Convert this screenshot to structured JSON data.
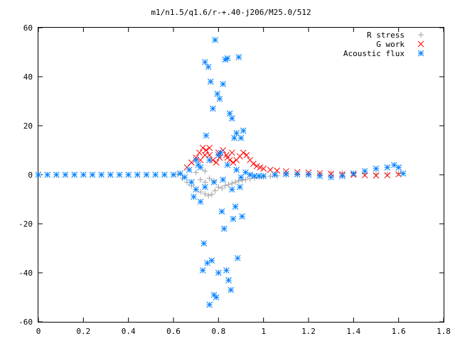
{
  "chart_data": {
    "type": "scatter",
    "title": "m1/n1.5/q1.6/r-+.40-j206/M25.0/512",
    "xlabel": "",
    "ylabel": "",
    "xlim": [
      0,
      1.8
    ],
    "ylim": [
      -60,
      60
    ],
    "x_ticks": [
      0,
      0.2,
      0.4,
      0.6,
      0.8,
      1,
      1.2,
      1.4,
      1.6,
      1.8
    ],
    "x_tick_labels": [
      "0",
      "0.2",
      "0.4",
      "0.6",
      "0.8",
      "1",
      "1.2",
      "1.4",
      "1.6",
      "1.8"
    ],
    "y_ticks": [
      -60,
      -40,
      -20,
      0,
      20,
      40,
      60
    ],
    "y_tick_labels": [
      "-60",
      "-40",
      "-20",
      "0",
      "20",
      "40",
      "60"
    ],
    "grid": false,
    "legend_position": "top-right",
    "series": [
      {
        "name": "R stress",
        "marker": "plus",
        "color": "#a0a0a0",
        "points": [
          [
            0.62,
            0.2
          ],
          [
            0.64,
            -1.5
          ],
          [
            0.66,
            -3.0
          ],
          [
            0.68,
            -4.5
          ],
          [
            0.7,
            -6.0
          ],
          [
            0.72,
            -7.0
          ],
          [
            0.74,
            -7.8
          ],
          [
            0.755,
            -8.5
          ],
          [
            0.77,
            -8.0
          ],
          [
            0.785,
            -6.5
          ],
          [
            0.8,
            -5.0
          ],
          [
            0.815,
            -5.5
          ],
          [
            0.83,
            -4.5
          ],
          [
            0.845,
            -4.0
          ],
          [
            0.86,
            -3.5
          ],
          [
            0.875,
            -3.0
          ],
          [
            0.89,
            -2.5
          ],
          [
            0.905,
            -2.2
          ],
          [
            0.92,
            -2.0
          ],
          [
            0.94,
            -1.6
          ],
          [
            0.96,
            -1.3
          ],
          [
            0.98,
            -1.0
          ],
          [
            1.0,
            -0.8
          ],
          [
            1.03,
            -0.6
          ],
          [
            1.06,
            -0.4
          ],
          [
            1.1,
            -0.2
          ],
          [
            1.15,
            0.0
          ],
          [
            1.2,
            0.2
          ],
          [
            1.25,
            0.5
          ],
          [
            1.3,
            0.8
          ],
          [
            1.35,
            0.8
          ],
          [
            1.4,
            0.6
          ],
          [
            1.45,
            0.4
          ],
          [
            1.5,
            0.3
          ],
          [
            1.55,
            0.3
          ],
          [
            1.6,
            0.5
          ],
          [
            0.72,
            -2.0
          ],
          [
            0.74,
            -3.0
          ],
          [
            0.76,
            -1.5
          ],
          [
            0.78,
            -2.5
          ],
          [
            0.74,
            1.5
          ],
          [
            0.7,
            1.0
          ]
        ]
      },
      {
        "name": "G work",
        "marker": "cross",
        "color": "#ff0000",
        "points": [
          [
            0.66,
            3.0
          ],
          [
            0.68,
            5.0
          ],
          [
            0.7,
            7.0
          ],
          [
            0.715,
            9.0
          ],
          [
            0.73,
            11.0
          ],
          [
            0.745,
            10.0
          ],
          [
            0.76,
            8.0
          ],
          [
            0.775,
            6.0
          ],
          [
            0.79,
            5.0
          ],
          [
            0.805,
            7.0
          ],
          [
            0.82,
            10.0
          ],
          [
            0.835,
            8.0
          ],
          [
            0.85,
            6.0
          ],
          [
            0.865,
            5.0
          ],
          [
            0.88,
            6.0
          ],
          [
            0.895,
            7.5
          ],
          [
            0.91,
            9.0
          ],
          [
            0.925,
            8.0
          ],
          [
            0.94,
            6.0
          ],
          [
            0.955,
            4.5
          ],
          [
            0.97,
            3.5
          ],
          [
            0.985,
            3.0
          ],
          [
            1.0,
            2.5
          ],
          [
            1.03,
            2.0
          ],
          [
            1.06,
            1.7
          ],
          [
            1.1,
            1.4
          ],
          [
            1.15,
            1.1
          ],
          [
            1.2,
            0.9
          ],
          [
            1.25,
            0.6
          ],
          [
            1.3,
            0.4
          ],
          [
            1.35,
            0.2
          ],
          [
            1.4,
            0.0
          ],
          [
            1.45,
            -0.2
          ],
          [
            1.5,
            -0.3
          ],
          [
            1.55,
            -0.2
          ],
          [
            1.6,
            0.2
          ],
          [
            0.72,
            6.0
          ],
          [
            0.74,
            8.0
          ],
          [
            0.76,
            11.0
          ],
          [
            0.8,
            9.0
          ],
          [
            0.84,
            7.0
          ],
          [
            0.86,
            9.0
          ]
        ]
      },
      {
        "name": "Acoustic flux",
        "marker": "star",
        "color": "#0080ff",
        "points": [
          [
            0.0,
            0
          ],
          [
            0.04,
            0
          ],
          [
            0.08,
            0
          ],
          [
            0.12,
            0
          ],
          [
            0.16,
            0
          ],
          [
            0.2,
            0
          ],
          [
            0.24,
            0
          ],
          [
            0.28,
            0
          ],
          [
            0.32,
            0
          ],
          [
            0.36,
            0
          ],
          [
            0.4,
            0
          ],
          [
            0.44,
            0
          ],
          [
            0.48,
            0
          ],
          [
            0.52,
            0
          ],
          [
            0.56,
            0
          ],
          [
            0.6,
            0
          ],
          [
            0.63,
            0.5
          ],
          [
            0.65,
            -1.0
          ],
          [
            0.67,
            2.0
          ],
          [
            0.69,
            -9.0
          ],
          [
            0.7,
            6.0
          ],
          [
            0.71,
            4.0
          ],
          [
            0.72,
            -11.0
          ],
          [
            0.73,
            -39.0
          ],
          [
            0.735,
            -28.0
          ],
          [
            0.74,
            46.0
          ],
          [
            0.745,
            16.0
          ],
          [
            0.75,
            -36.0
          ],
          [
            0.755,
            44.0
          ],
          [
            0.76,
            -53.0
          ],
          [
            0.765,
            38.0
          ],
          [
            0.77,
            -35.0
          ],
          [
            0.775,
            27.0
          ],
          [
            0.78,
            -49.0
          ],
          [
            0.785,
            55.0
          ],
          [
            0.79,
            -50.0
          ],
          [
            0.795,
            33.0
          ],
          [
            0.8,
            -40.0
          ],
          [
            0.805,
            31.0
          ],
          [
            0.81,
            9.0
          ],
          [
            0.815,
            -15.0
          ],
          [
            0.82,
            37.0
          ],
          [
            0.825,
            -22.0
          ],
          [
            0.83,
            47.0
          ],
          [
            0.835,
            -39.0
          ],
          [
            0.84,
            47.5
          ],
          [
            0.845,
            -43.0
          ],
          [
            0.85,
            25.0
          ],
          [
            0.855,
            -47.0
          ],
          [
            0.86,
            23.0
          ],
          [
            0.865,
            -18.0
          ],
          [
            0.87,
            15.0
          ],
          [
            0.875,
            -13.0
          ],
          [
            0.88,
            17.0
          ],
          [
            0.885,
            -34.0
          ],
          [
            0.89,
            48.0
          ],
          [
            0.895,
            -5.0
          ],
          [
            0.9,
            15.0
          ],
          [
            0.905,
            -17.0
          ],
          [
            0.91,
            18.0
          ],
          [
            0.92,
            1.0
          ],
          [
            0.94,
            0.0
          ],
          [
            0.96,
            -0.5
          ],
          [
            0.98,
            -0.5
          ],
          [
            1.0,
            -0.5
          ],
          [
            1.05,
            0.0
          ],
          [
            1.1,
            0.3
          ],
          [
            1.15,
            0.2
          ],
          [
            1.2,
            0.0
          ],
          [
            1.25,
            -0.5
          ],
          [
            1.3,
            -1.0
          ],
          [
            1.35,
            -0.5
          ],
          [
            1.4,
            0.5
          ],
          [
            1.45,
            1.5
          ],
          [
            1.5,
            2.5
          ],
          [
            1.55,
            3.0
          ],
          [
            1.58,
            4.0
          ],
          [
            1.6,
            3.0
          ],
          [
            1.62,
            0.5
          ],
          [
            0.68,
            -3.0
          ],
          [
            0.7,
            -6.0
          ],
          [
            0.72,
            3.0
          ],
          [
            0.74,
            -5.0
          ],
          [
            0.76,
            6.0
          ],
          [
            0.78,
            -3.0
          ],
          [
            0.8,
            8.0
          ],
          [
            0.82,
            -2.0
          ],
          [
            0.84,
            4.0
          ],
          [
            0.86,
            -6.0
          ],
          [
            0.88,
            2.0
          ],
          [
            0.9,
            -1.0
          ]
        ]
      }
    ]
  }
}
